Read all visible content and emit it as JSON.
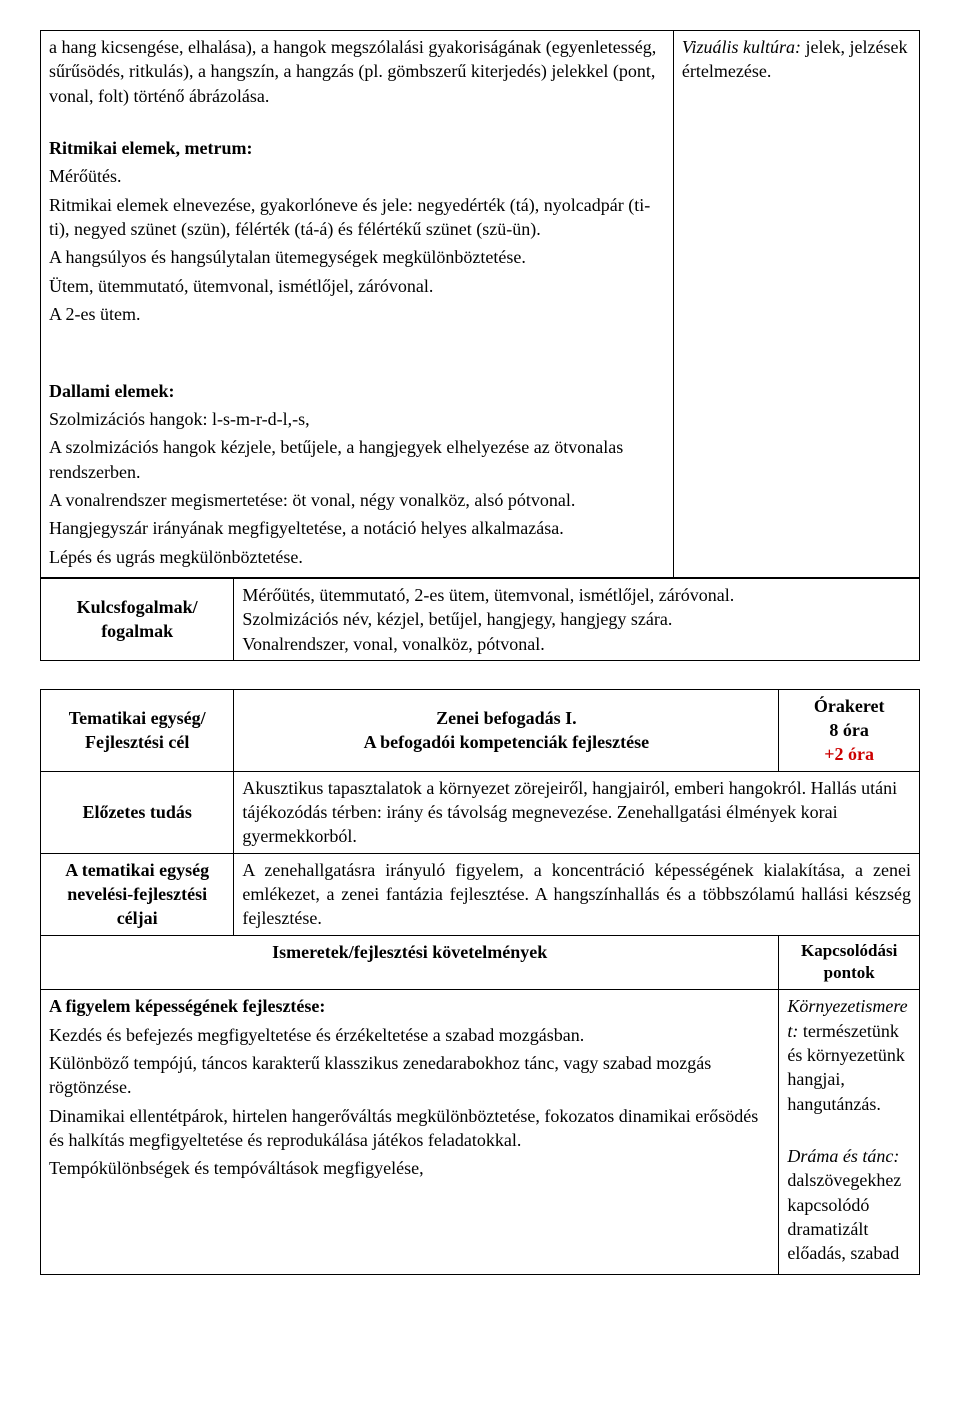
{
  "section1": {
    "para1": "a hang kicsengése, elhalása), a hangok megszólalási gyakoriságának (egyenletesség, sűrűsödés, ritkulás), a hangszín, a hangzás (pl. gömbszerű kiterjedés) jelekkel (pont, vonal, folt) történő ábrázolása.",
    "ritmikai_title": "Ritmikai elemek, metrum:",
    "ritmikai_p1": "Mérőütés.",
    "ritmikai_p2": "Ritmikai elemek elnevezése, gyakorlóneve és jele: negyedérték (tá), nyolcadpár (ti-ti), negyed szünet (szün), félérték (tá-á) és félértékű szünet (szü-ün).",
    "ritmikai_p3": "A hangsúlyos és hangsúlytalan ütemegységek megkülönböztetése.",
    "ritmikai_p4": "Ütem, ütemmutató, ütemvonal, ismétlőjel, záróvonal.",
    "ritmikai_p5": "A 2-es ütem.",
    "dallami_title": "Dallami elemek:",
    "dallami_p1": "Szolmizációs hangok: l-s-m-r-d-l,-s,",
    "dallami_p2": "A szolmizációs hangok kézjele, betűjele, a hangjegyek elhelyezése az ötvonalas rendszerben.",
    "dallami_p3": "A vonalrendszer megismertetése: öt vonal, négy vonalköz, alsó pótvonal.",
    "dallami_p4": "Hangjegyszár irányának megfigyeltetése, a notáció helyes alkalmazása.",
    "dallami_p5": "Lépés és ugrás megkülönböztetése.",
    "right_italic": "Vizuális kultúra:",
    "right_text": "jelek, jelzések értelmezése.",
    "kulcs_label": "Kulcsfogalmak/ fogalmak",
    "kulcs_text1": "Mérőütés, ütemmutató, 2-es ütem, ütemvonal, ismétlőjel, záróvonal.",
    "kulcs_text2": "Szolmizációs név, kézjel, betűjel, hangjegy, hangjegy szára.",
    "kulcs_text3": "Vonalrendszer, vonal, vonalköz, pótvonal."
  },
  "section2": {
    "r1c1": "Tematikai egység/ Fejlesztési cél",
    "r1c2_l1": "Zenei befogadás I.",
    "r1c2_l2": "A befogadói kompetenciák fejlesztése",
    "r1c3_l1": "Órakeret",
    "r1c3_l2": "8 óra",
    "r1c3_l3": "+2 óra",
    "r2c1": "Előzetes tudás",
    "r2c2": "Akusztikus tapasztalatok a környezet zörejeiről, hangjairól, emberi hangokról. Hallás utáni tájékozódás térben: irány és távolság megnevezése. Zenehallgatási élmények korai gyermekkorból.",
    "r3c1": "A tematikai egység nevelési-fejlesztési céljai",
    "r3c2": "A zenehallgatásra irányuló figyelem, a koncentráció képességének kialakítása, a zenei emlékezet, a zenei fantázia fejlesztése. A hangszínhallás és a többszólamú hallási készség fejlesztése.",
    "r4c1": "Ismeretek/fejlesztési követelmények",
    "r4c2": "Kapcsolódási pontok",
    "r5_left_title": "A figyelem képességének fejlesztése:",
    "r5_left_p1": "Kezdés és befejezés megfigyeltetése és érzékeltetése a szabad mozgásban.",
    "r5_left_p2": "Különböző tempójú, táncos karakterű klasszikus zenedarabokhoz tánc, vagy szabad mozgás rögtönzése.",
    "r5_left_p3": "Dinamikai ellentétpárok, hirtelen hangerőváltás megkülönböztetése, fokozatos dinamikai erősödés és halkítás megfigyeltetése és reprodukálása játékos feladatokkal.",
    "r5_left_p4": "Tempókülönbségek és tempóváltások megfigyelése,",
    "r5_right_i1": "Környezetismeret:",
    "r5_right_t1": "természetünk és környezetünk hangjai, hangutánzás.",
    "r5_right_i2": "Dráma és tánc:",
    "r5_right_t2": "dalszövegekhez kapcsolódó dramatizált előadás, szabad"
  }
}
